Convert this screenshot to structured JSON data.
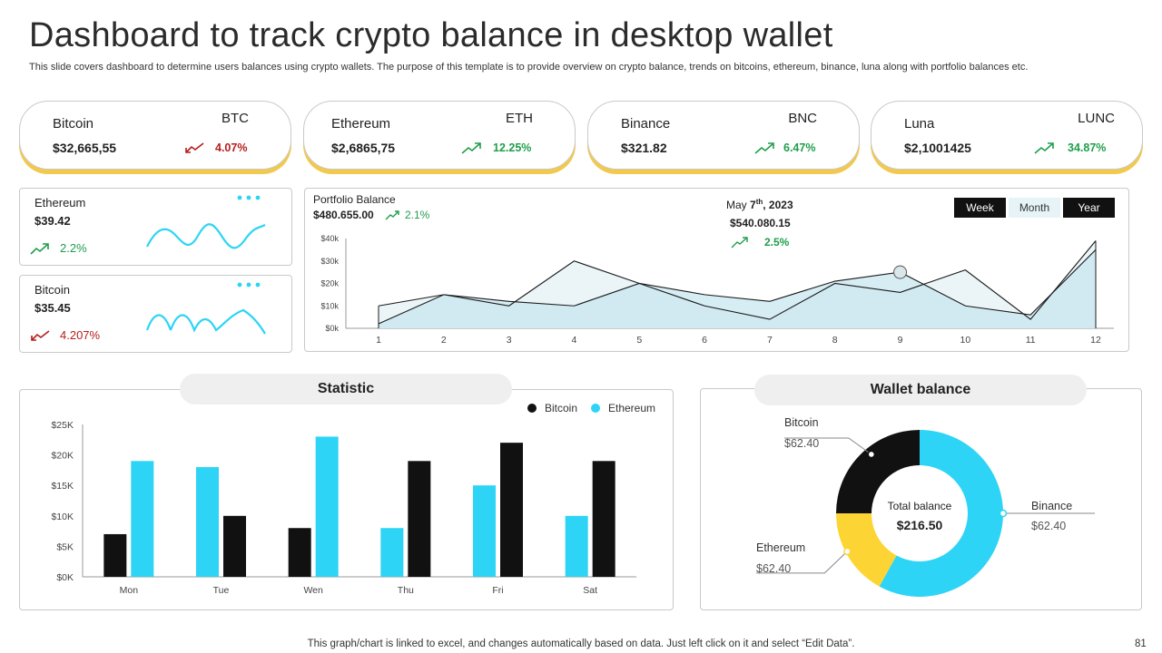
{
  "title": "Dashboard to track crypto balance in desktop wallet",
  "subtitle": "This slide covers dashboard to determine users balances using crypto wallets. The purpose of this template is to provide overview on crypto balance, trends on bitcoins, ethereum, binance, luna along with portfolio balances etc.",
  "colors": {
    "accent_yellow": "#f2c94c",
    "cyan": "#2dd4f5",
    "black": "#111111",
    "up_green": "#1e9e4a",
    "down_red": "#b71c1c"
  },
  "coins": [
    {
      "name": "Bitcoin",
      "symbol": "BTC",
      "price": "$32,665,55",
      "change": "4.07%",
      "direction": "down",
      "icon": "trend-down-icon"
    },
    {
      "name": "Ethereum",
      "symbol": "ETH",
      "price": "$2,6865,75",
      "change": "12.25%",
      "direction": "up",
      "icon": "trend-up-icon"
    },
    {
      "name": "Binance",
      "symbol": "BNC",
      "price": "$321.82",
      "change": "6.47%",
      "direction": "up",
      "icon": "trend-up-icon"
    },
    {
      "name": "Luna",
      "symbol": "LUNC",
      "price": "$2,1001425",
      "change": "34.87%",
      "direction": "up",
      "icon": "trend-up-icon"
    }
  ],
  "mini_cards": [
    {
      "name": "Ethereum",
      "price": "$39.42",
      "change": "2.2%",
      "direction": "up",
      "icon": "more-dots-icon"
    },
    {
      "name": "Bitcoin",
      "price": "$35.45",
      "change": "4.207%",
      "direction": "down",
      "icon": "more-dots-icon"
    }
  ],
  "portfolio": {
    "label": "Portfolio Balance",
    "value": "$480.655.00",
    "change": "2.1%",
    "highlight": {
      "date_prefix": "May ",
      "day": "7",
      "suffix": "th",
      "year": ", 2023",
      "value": "$540.080.15",
      "change": "2.5%"
    },
    "ranges": [
      {
        "label": "Week",
        "active": true
      },
      {
        "label": "Month",
        "active": false
      },
      {
        "label": "Year",
        "active": true
      }
    ]
  },
  "statistic": {
    "title": "Statistic",
    "legend": [
      {
        "name": "Bitcoin",
        "color": "#111111"
      },
      {
        "name": "Ethereum",
        "color": "#2dd4f5"
      }
    ]
  },
  "wallet": {
    "title": "Wallet balance",
    "center_label": "Total balance",
    "center_value": "$216.50",
    "labels": [
      {
        "name": "Bitcoin",
        "value": "$62.40"
      },
      {
        "name": "Binance",
        "value": "$62.40"
      },
      {
        "name": "Ethereum",
        "value": "$62.40"
      }
    ]
  },
  "footer": {
    "note": "This graph/chart is linked to excel, and changes automatically based on data. Just left click on it and select “Edit Data”.",
    "page": "81"
  },
  "chart_data": [
    {
      "type": "area",
      "chart": "portfolio-balance",
      "x": [
        1,
        2,
        3,
        4,
        5,
        6,
        7,
        8,
        9,
        10,
        11,
        12
      ],
      "series": [
        {
          "values": [
            10000,
            15000,
            10000,
            30000,
            20000,
            10000,
            4000,
            20000,
            16000,
            26000,
            4000,
            39000
          ],
          "color": "#1a1a1a"
        },
        {
          "values": [
            2000,
            15000,
            12000,
            10000,
            20000,
            15000,
            12000,
            21000,
            25000,
            10000,
            6000,
            35000
          ],
          "color": "#1a1a1a"
        }
      ],
      "yticks": [
        "$0k",
        "$10k",
        "$20k",
        "$30k",
        "$40k"
      ],
      "ylim": [
        0,
        40000
      ],
      "marker_x": 9,
      "grid": false
    },
    {
      "type": "bar",
      "chart": "statistic",
      "categories": [
        "Mon",
        "Tue",
        "Wen",
        "Thu",
        "Fri",
        "Sat"
      ],
      "series": [
        {
          "name": "Bitcoin",
          "values": [
            7000,
            10000,
            8000,
            19000,
            22000,
            19000
          ],
          "color": "#111111"
        },
        {
          "name": "Ethereum",
          "values": [
            19000,
            18000,
            23000,
            8000,
            15000,
            10000
          ],
          "color": "#2dd4f5"
        }
      ],
      "order": [
        [
          "Bitcoin",
          "Ethereum"
        ],
        [
          "Ethereum",
          "Bitcoin"
        ],
        [
          "Bitcoin",
          "Ethereum"
        ],
        [
          "Ethereum",
          "Bitcoin"
        ],
        [
          "Ethereum",
          "Bitcoin"
        ],
        [
          "Ethereum",
          "Bitcoin"
        ]
      ],
      "yticks": [
        "$0K",
        "$5K",
        "$10K",
        "$15K",
        "$20K",
        "$25K"
      ],
      "ylim": [
        0,
        25000
      ],
      "legend": "top-right",
      "grid": false
    },
    {
      "type": "pie",
      "chart": "wallet-balance",
      "donut": true,
      "slices": [
        {
          "name": "Bitcoin",
          "value": 25,
          "color": "#111111"
        },
        {
          "name": "Ethereum",
          "value": 17,
          "color": "#fcd535"
        },
        {
          "name": "Binance",
          "value": 58,
          "color": "#2dd4f5"
        }
      ]
    }
  ]
}
